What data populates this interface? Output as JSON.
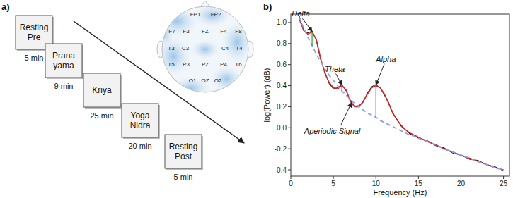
{
  "panel_a": {
    "panel_label": "a)",
    "steps": [
      {
        "lines": [
          "Resting",
          "Pre"
        ],
        "duration": "5 min"
      },
      {
        "lines": [
          "Prana",
          "yama"
        ],
        "duration": "9 min"
      },
      {
        "lines": [
          "Kriya"
        ],
        "duration": "25 min"
      },
      {
        "lines": [
          "Yoga",
          "Nidra"
        ],
        "duration": "20 min"
      },
      {
        "lines": [
          "Resting",
          "Post"
        ],
        "duration": "5 min"
      }
    ],
    "electrodes": [
      "FP1",
      "FP2",
      "F7",
      "F3",
      "FZ",
      "F4",
      "F8",
      "T3",
      "C3",
      "C4",
      "T4",
      "T5",
      "P3",
      "PZ",
      "P4",
      "T6",
      "O1",
      "OZ",
      "O2"
    ]
  },
  "chart_data": {
    "type": "line",
    "panel_label": "b)",
    "x_label": "Frequency (Hz)",
    "y_label": "log(Power) (dB)",
    "x": [
      1,
      1.5,
      2,
      2.5,
      3,
      3.5,
      4,
      4.5,
      5,
      5.5,
      6,
      6.5,
      7,
      7.5,
      8,
      8.5,
      9,
      9.5,
      10,
      10.5,
      11,
      11.5,
      12,
      12.5,
      13,
      13.5,
      14,
      14.5,
      15,
      16,
      17,
      18,
      19,
      20,
      21,
      22,
      23,
      24,
      25
    ],
    "series": [
      {
        "color": "#000000",
        "line_style": "solid",
        "values": [
          1.06,
          0.92,
          0.9,
          0.92,
          0.83,
          0.65,
          0.53,
          0.42,
          0.37,
          0.38,
          0.41,
          0.35,
          0.26,
          0.2,
          0.21,
          0.24,
          0.33,
          0.39,
          0.41,
          0.38,
          0.31,
          0.24,
          0.13,
          0.08,
          0.01,
          -0.02,
          -0.06,
          -0.07,
          -0.1,
          -0.12,
          -0.17,
          -0.19,
          -0.24,
          -0.26,
          -0.3,
          -0.31,
          -0.35,
          -0.37,
          -0.41
        ]
      },
      {
        "color": "#d62728",
        "line_style": "solid",
        "values": [
          1.03,
          0.93,
          0.89,
          0.91,
          0.84,
          0.66,
          0.52,
          0.43,
          0.38,
          0.37,
          0.4,
          0.36,
          0.25,
          0.2,
          0.2,
          0.25,
          0.32,
          0.38,
          0.4,
          0.38,
          0.32,
          0.23,
          0.14,
          0.07,
          0.02,
          -0.02,
          -0.05,
          -0.07,
          -0.09,
          -0.13,
          -0.16,
          -0.2,
          -0.23,
          -0.26,
          -0.29,
          -0.32,
          -0.35,
          -0.38,
          -0.4
        ]
      },
      {
        "color": "#8c9ef0",
        "line_style": "dashed",
        "values": [
          1.05,
          0.95,
          0.86,
          0.78,
          0.7,
          0.63,
          0.56,
          0.5,
          0.45,
          0.4,
          0.35,
          0.31,
          0.27,
          0.23,
          0.2,
          0.17,
          0.14,
          0.12,
          0.1,
          0.07,
          0.05,
          0.03,
          0.01,
          -0.01,
          -0.03,
          -0.05,
          -0.07,
          -0.08,
          -0.1,
          -0.13,
          -0.16,
          -0.2,
          -0.23,
          -0.26,
          -0.29,
          -0.32,
          -0.35,
          -0.38,
          -0.4
        ]
      }
    ],
    "peaks": [
      {
        "label": "Delta",
        "x": 2.5,
        "base": 0.78,
        "top": 0.91
      },
      {
        "label": "Theta",
        "x": 6,
        "base": 0.35,
        "top": 0.4
      },
      {
        "label": "Alpha",
        "x": 10,
        "base": 0.1,
        "top": 0.4
      }
    ],
    "annotations": [
      {
        "text": "Aperiodic Signal",
        "x": 7.2,
        "y": 0.25
      }
    ],
    "xlim": [
      0,
      25.7
    ],
    "xticks": [
      0,
      5,
      10,
      15,
      20,
      25
    ],
    "ylim": [
      -0.46,
      1.08
    ],
    "yticks": [
      -0.4,
      -0.2,
      {
        "value": 0,
        "label": "0.0"
      },
      0.2,
      0.4,
      0.6,
      0.8,
      {
        "value": 1,
        "label": "1.0"
      }
    ],
    "grid": false
  }
}
